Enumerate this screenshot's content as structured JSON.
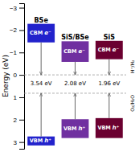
{
  "chart_data": {
    "type": "bar",
    "ylabel": "Energy (eV)",
    "categories": [
      "BSe",
      "SiS/BSe",
      "SiS"
    ],
    "colors": [
      "#2222cc",
      "#7030a0",
      "#6b0030"
    ],
    "series": [
      {
        "labels": [
          "CBM",
          "CBM",
          "CBM"
        ],
        "carriers": [
          "e⁻",
          "e⁻",
          "e⁻"
        ],
        "bottoms": [
          -2.28,
          -0.58,
          -0.7
        ],
        "tops": [
          -1.45,
          -1.5,
          -1.52
        ]
      },
      {
        "labels": [
          "VBM",
          "VBM",
          "VBM"
        ],
        "carriers": [
          "h⁺",
          "h⁺",
          "h⁺"
        ],
        "bottoms": [
          3.15,
          2.82,
          2.82
        ],
        "tops": [
          2.75,
          1.98,
          1.93
        ]
      }
    ],
    "gap_labels": [
      "3.54 eV",
      "2.08 eV",
      "1.96 eV"
    ],
    "reference_lines": [
      {
        "value": 0.0,
        "label": "H⁺/H₂"
      },
      {
        "value": 0.82,
        "label": "O₂/H₂O"
      }
    ],
    "ylim": [
      3.3,
      -3.2
    ],
    "yticks": [
      -3,
      -2,
      -1,
      0,
      1,
      2,
      3
    ],
    "tick_labels": "y"
  }
}
